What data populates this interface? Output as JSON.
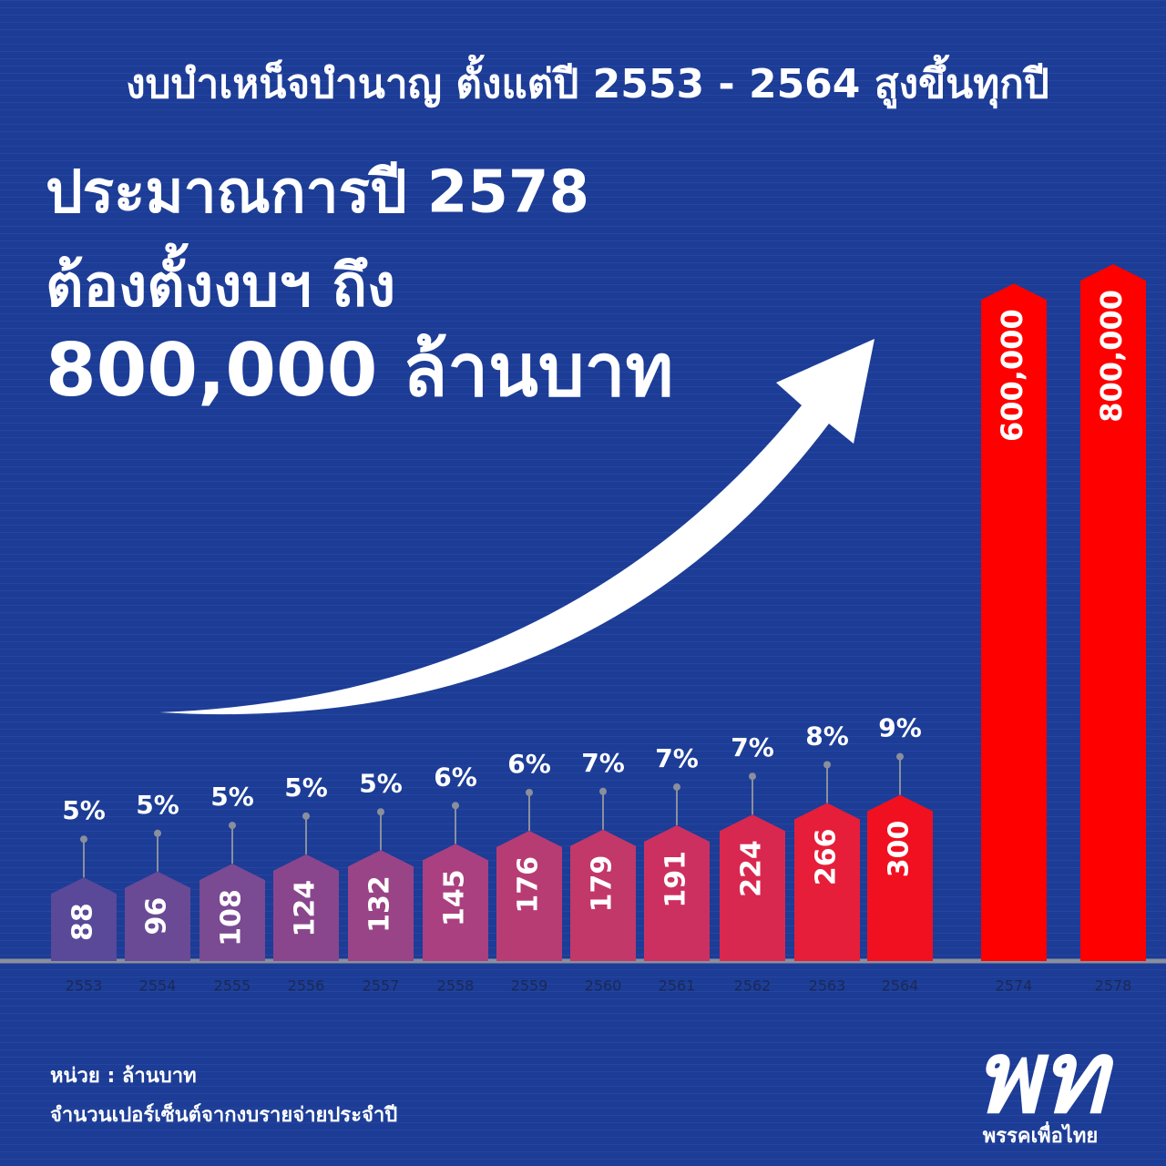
{
  "title": "งบบำเหน็จบำนาญ ตั้งแต่ปี 2553 - 2564 สูงขึ้นทุกปี",
  "headline": [
    "ประมาณการปี 2578",
    "ต้องตั้งงบฯ ถึง",
    "800,000 ล้านบาท"
  ],
  "footnotes": [
    "หน่วย : ล้านบาท",
    "จำนวนเปอร์เซ็นต์จากงบรายจ่ายประจำปี"
  ],
  "logo": {
    "mark": "พท",
    "name": "พรรคเพื่อไทย"
  },
  "chart_data": {
    "type": "bar",
    "log_scale": true,
    "categories": [
      "2553",
      "2554",
      "2555",
      "2556",
      "2557",
      "2558",
      "2559",
      "2560",
      "2561",
      "2562",
      "2563",
      "2564",
      "2574",
      "2578"
    ],
    "values": [
      88,
      96,
      108,
      124,
      132,
      145,
      176,
      179,
      191,
      224,
      266,
      300,
      600000,
      800000
    ],
    "value_labels": [
      "88",
      "96",
      "108",
      "124",
      "132",
      "145",
      "176",
      "179",
      "191",
      "224",
      "266",
      "300",
      "600,000",
      "800,000"
    ],
    "percents": [
      5,
      5,
      5,
      5,
      5,
      6,
      6,
      7,
      7,
      7,
      8,
      9,
      null,
      null
    ],
    "percent_labels": [
      "5%",
      "5%",
      "5%",
      "5%",
      "5%",
      "6%",
      "6%",
      "7%",
      "7%",
      "7%",
      "8%",
      "9%",
      null,
      null
    ],
    "colors": [
      "#5a4898",
      "#6a4a95",
      "#7a4a92",
      "#8a468c",
      "#9a4488",
      "#aa4080",
      "#b83c74",
      "#c23868",
      "#cc3060",
      "#d82850",
      "#e61e3a",
      "#f01020",
      "#ff0000",
      "#ff0000"
    ]
  }
}
